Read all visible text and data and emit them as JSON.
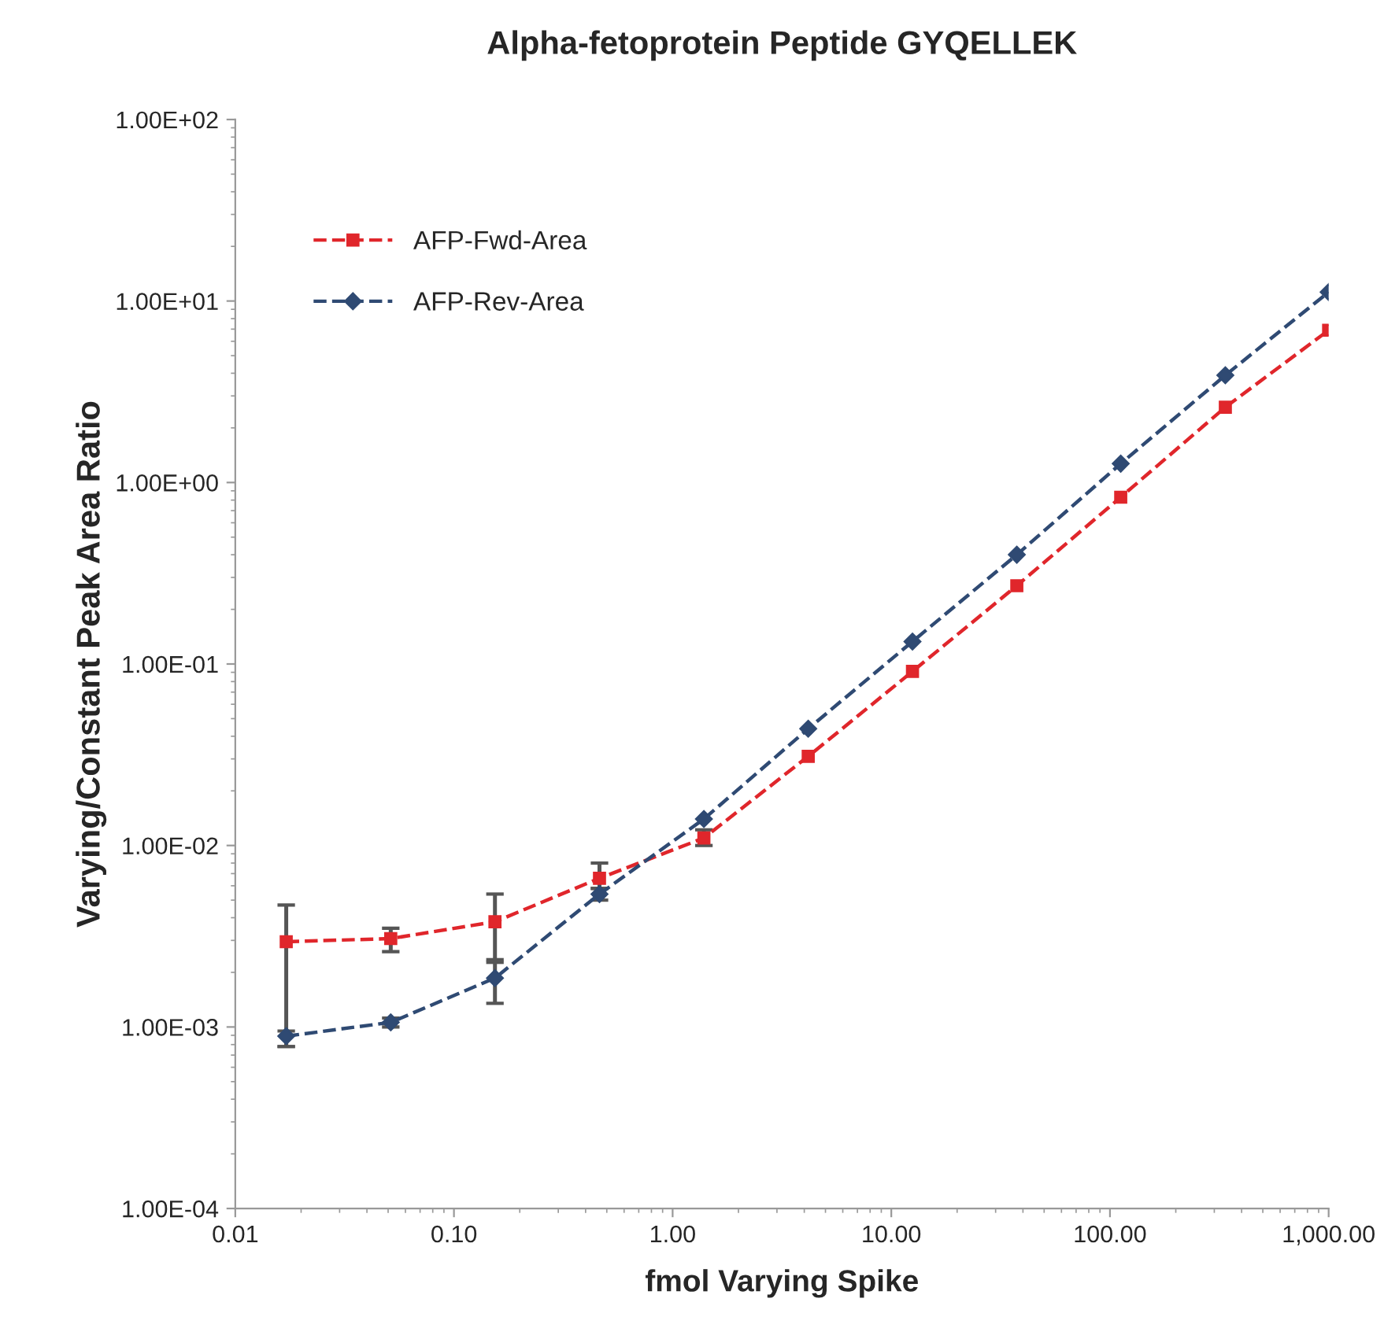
{
  "chart_data": {
    "type": "line",
    "title": "Alpha-fetoprotein Peptide GYQELLEK",
    "xlabel": "fmol Varying Spike",
    "ylabel": "Varying/Constant Peak Area Ratio",
    "x": [
      0.0171,
      0.0514,
      0.154,
      0.463,
      1.39,
      4.17,
      12.5,
      37.5,
      112,
      337,
      1000
    ],
    "series": [
      {
        "name": "AFP-Fwd-Area",
        "color": "#e0262b",
        "marker": "square",
        "values": [
          0.00295,
          0.00307,
          0.0038,
          0.0066,
          0.011,
          0.031,
          0.091,
          0.27,
          0.83,
          2.6,
          6.9
        ],
        "errors": [
          [
            0.00078,
            0.0047
          ],
          [
            0.0026,
            0.0035
          ],
          [
            0.00227,
            0.0054
          ],
          [
            0.0058,
            0.008
          ],
          [
            0.01,
            0.0122
          ],
          null,
          null,
          null,
          null,
          null,
          null
        ]
      },
      {
        "name": "AFP-Rev-Area",
        "color": "#2f4a73",
        "marker": "diamond",
        "values": [
          0.00089,
          0.00106,
          0.00186,
          0.0054,
          0.014,
          0.044,
          0.133,
          0.4,
          1.27,
          3.9,
          11.2
        ],
        "errors": [
          [
            0.00078,
            0.00095
          ],
          [
            0.001,
            0.00112
          ],
          [
            0.00135,
            0.00235
          ],
          [
            0.005,
            0.0058
          ],
          null,
          null,
          null,
          null,
          null,
          null,
          null
        ]
      }
    ],
    "log": "xy",
    "line_style": "dashed",
    "legend": "top left",
    "grid": false,
    "xlim": [
      0.01,
      1000
    ],
    "xticks": [
      {
        "value": 0.01,
        "label": "0.01"
      },
      {
        "value": 0.1,
        "label": "0.10"
      },
      {
        "value": 1,
        "label": "1.00"
      },
      {
        "value": 10,
        "label": "10.00"
      },
      {
        "value": 100,
        "label": "100.00"
      },
      {
        "value": 1000,
        "label": "1,000.00"
      }
    ],
    "ylim": [
      0.0001,
      100
    ],
    "yticks": [
      {
        "value": 0.0001,
        "label": "1.00E-04"
      },
      {
        "value": 0.001,
        "label": "1.00E-03"
      },
      {
        "value": 0.01,
        "label": "1.00E-02"
      },
      {
        "value": 0.1,
        "label": "1.00E-01"
      },
      {
        "value": 1,
        "label": "1.00E+00"
      },
      {
        "value": 10,
        "label": "1.00E+01"
      },
      {
        "value": 100,
        "label": "1.00E+02"
      }
    ]
  }
}
